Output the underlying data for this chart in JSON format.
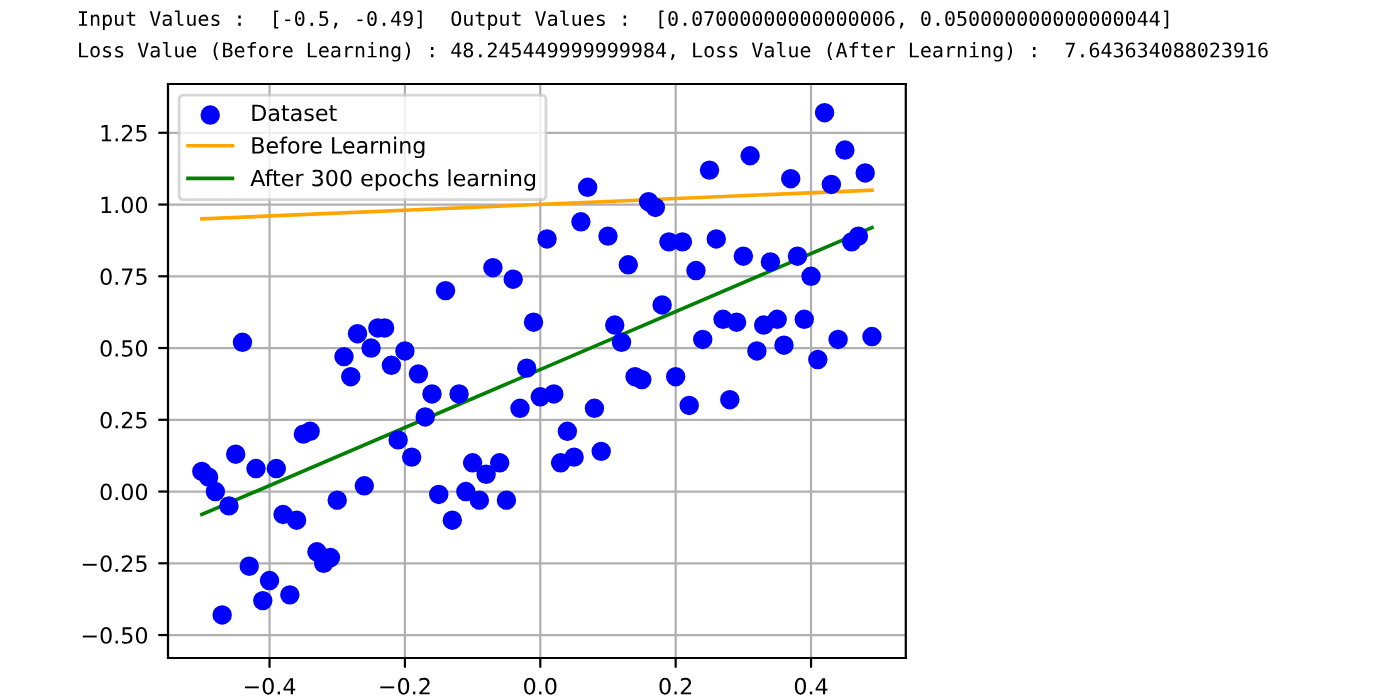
{
  "chart_data": {
    "type": "scatter",
    "annotations": [
      "Input Values :  [-0.5, -0.49]  Output Values :  [0.07000000000000006, 0.050000000000000044]",
      "Loss Value (Before Learning) : 48.245449999999984, Loss Value (After Learning) :  7.643634088023916"
    ],
    "series": [
      {
        "name": "Dataset",
        "marker": "circle",
        "color": "#0000ff",
        "x": [
          -0.5,
          -0.49,
          -0.48,
          -0.46,
          -0.45,
          -0.44,
          -0.42,
          -0.39,
          -0.43,
          -0.4,
          -0.41,
          -0.47,
          -0.37,
          -0.38,
          -0.36,
          -0.35,
          -0.34,
          -0.33,
          -0.32,
          -0.31,
          -0.3,
          -0.29,
          -0.28,
          -0.27,
          -0.26,
          -0.25,
          -0.24,
          -0.23,
          -0.22,
          -0.21,
          -0.2,
          -0.19,
          -0.18,
          -0.17,
          -0.16,
          -0.15,
          -0.14,
          -0.13,
          -0.12,
          -0.11,
          -0.1,
          -0.09,
          -0.08,
          -0.07,
          -0.06,
          -0.05,
          -0.04,
          -0.03,
          -0.02,
          -0.01,
          0.0,
          0.01,
          0.02,
          0.03,
          0.04,
          0.05,
          0.06,
          0.07,
          0.08,
          0.09,
          0.1,
          0.11,
          0.12,
          0.13,
          0.14,
          0.15,
          0.16,
          0.17,
          0.18,
          0.19,
          0.2,
          0.21,
          0.22,
          0.23,
          0.24,
          0.25,
          0.26,
          0.27,
          0.28,
          0.29,
          0.3,
          0.31,
          0.32,
          0.33,
          0.34,
          0.35,
          0.36,
          0.37,
          0.38,
          0.39,
          0.4,
          0.41,
          0.42,
          0.43,
          0.44,
          0.45,
          0.46,
          0.47,
          0.48,
          0.49
        ],
        "values": [
          0.07,
          0.05,
          0.0,
          -0.05,
          0.13,
          0.52,
          0.08,
          0.08,
          -0.26,
          -0.31,
          -0.38,
          -0.43,
          -0.36,
          -0.08,
          -0.1,
          0.2,
          0.21,
          -0.21,
          -0.25,
          -0.23,
          -0.03,
          0.47,
          0.4,
          0.55,
          0.02,
          0.5,
          0.57,
          0.57,
          0.44,
          0.18,
          0.49,
          0.12,
          0.41,
          0.26,
          0.34,
          -0.01,
          0.7,
          -0.1,
          0.34,
          0.0,
          0.1,
          -0.03,
          0.06,
          0.78,
          0.1,
          -0.03,
          0.74,
          0.29,
          0.43,
          0.59,
          0.33,
          0.88,
          0.34,
          0.1,
          0.21,
          0.12,
          0.94,
          1.06,
          0.29,
          0.14,
          0.89,
          0.58,
          0.52,
          0.79,
          0.4,
          0.39,
          1.01,
          0.99,
          0.65,
          0.87,
          0.4,
          0.87,
          0.3,
          0.77,
          0.53,
          1.12,
          0.88,
          0.6,
          0.32,
          0.59,
          0.82,
          1.17,
          0.49,
          0.58,
          0.8,
          0.6,
          0.51,
          1.09,
          0.82,
          0.6,
          0.75,
          0.46,
          1.32,
          1.07,
          0.53,
          1.19,
          0.87,
          0.89,
          1.11,
          0.54
        ]
      },
      {
        "name": "Before Learning",
        "type": "line",
        "color": "#ffa500",
        "x": [
          -0.5,
          0.49
        ],
        "values": [
          0.95,
          1.05
        ]
      },
      {
        "name": "After 300 epochs learning",
        "type": "line",
        "color": "#008000",
        "x": [
          -0.5,
          0.49
        ],
        "values": [
          -0.08,
          0.92
        ]
      }
    ],
    "xlim": [
      -0.55,
      0.54
    ],
    "ylim": [
      -0.58,
      1.42
    ],
    "xticks": [
      {
        "value": -0.4,
        "label": "−0.4"
      },
      {
        "value": -0.2,
        "label": "−0.2"
      },
      {
        "value": 0.0,
        "label": "0.0"
      },
      {
        "value": 0.2,
        "label": "0.2"
      },
      {
        "value": 0.4,
        "label": "0.4"
      }
    ],
    "yticks": [
      {
        "value": -0.5,
        "label": "−0.50"
      },
      {
        "value": -0.25,
        "label": "−0.25"
      },
      {
        "value": 0.0,
        "label": "0.00"
      },
      {
        "value": 0.25,
        "label": "0.25"
      },
      {
        "value": 0.5,
        "label": "0.50"
      },
      {
        "value": 0.75,
        "label": "0.75"
      },
      {
        "value": 1.0,
        "label": "1.00"
      },
      {
        "value": 1.25,
        "label": "1.25"
      }
    ],
    "grid": true,
    "legend": "top left"
  }
}
